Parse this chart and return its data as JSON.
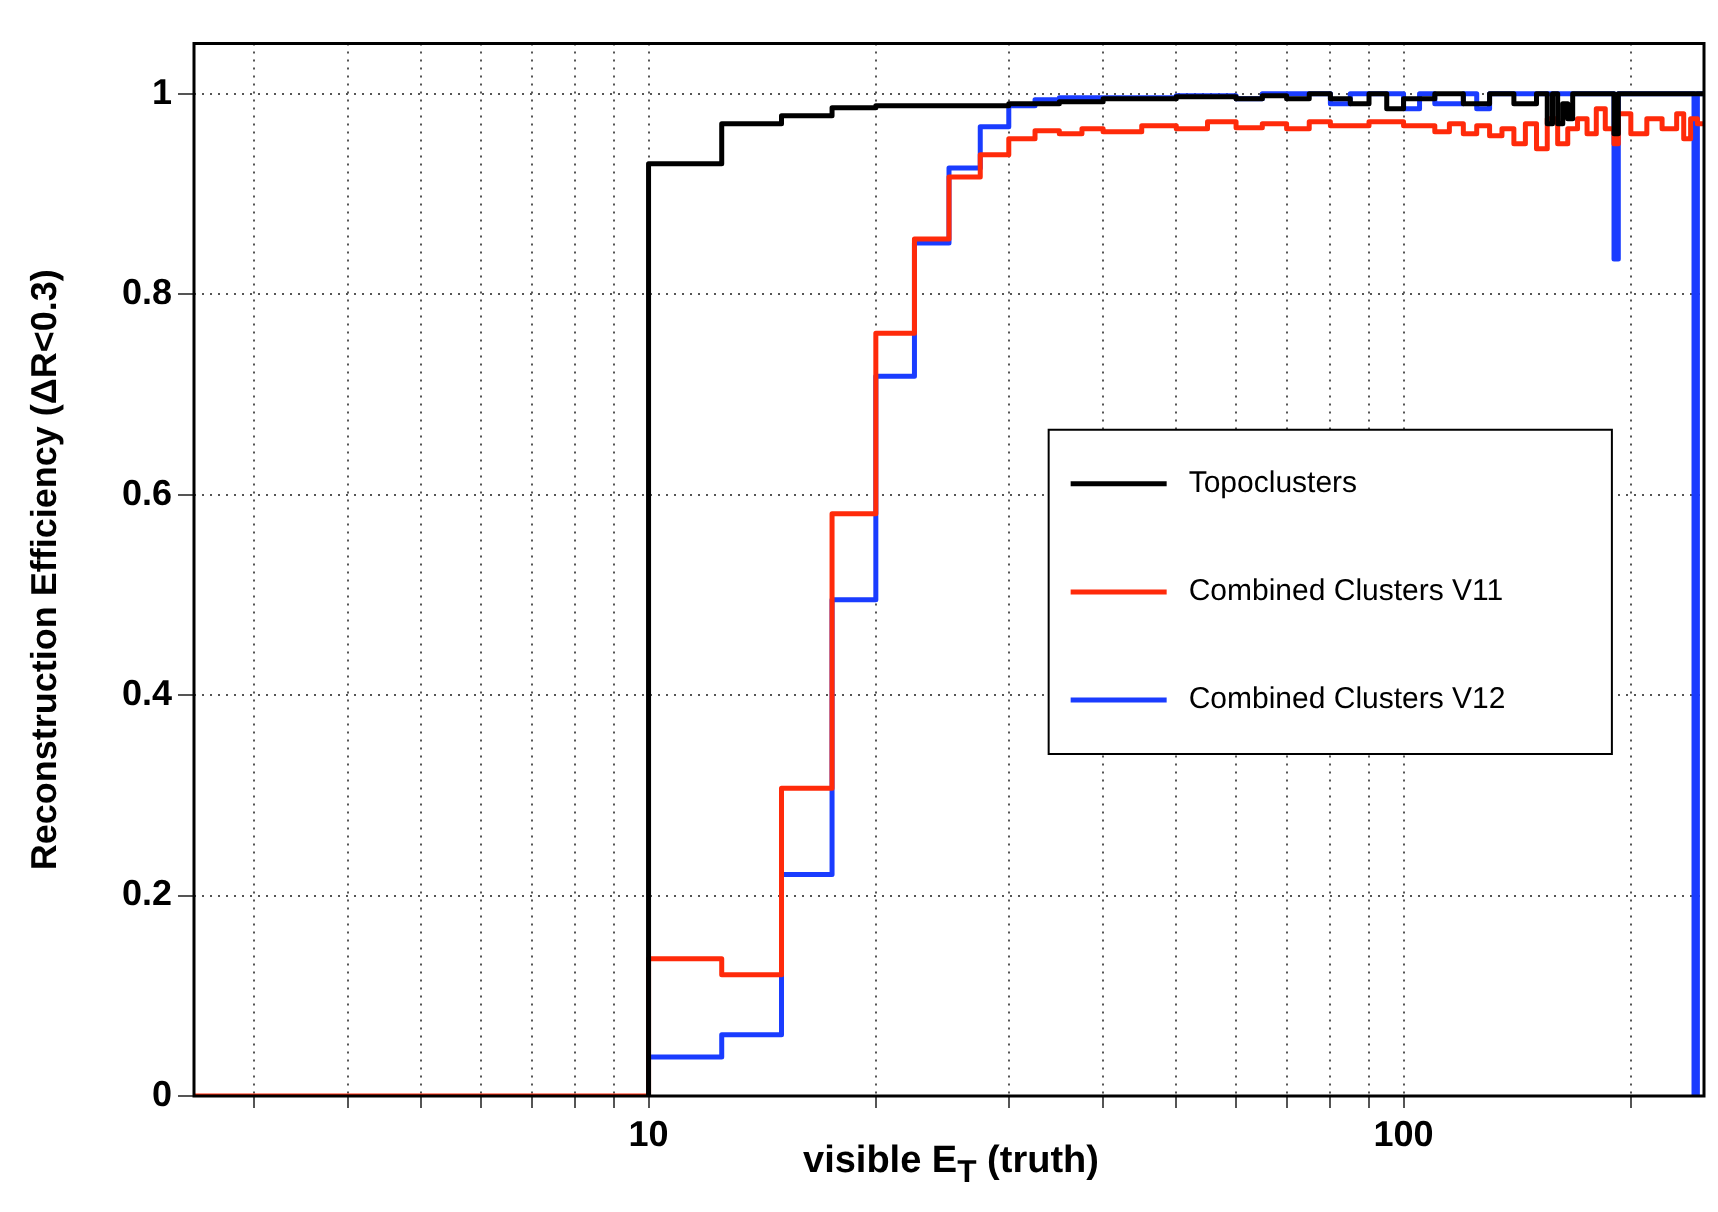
{
  "chart_data": {
    "type": "step",
    "xlabel": "visible E$_{T}$ (truth)",
    "ylabel": "Reconstruction Efficiency (ΔR<0.3)",
    "log": "x",
    "xlim": [
      2.5,
      250
    ],
    "xticks": [
      {
        "value": 3,
        "label": null
      },
      {
        "value": 4,
        "label": null
      },
      {
        "value": 5,
        "label": null
      },
      {
        "value": 6,
        "label": null
      },
      {
        "value": 7,
        "label": null
      },
      {
        "value": 8,
        "label": null
      },
      {
        "value": 9,
        "label": null
      },
      10,
      {
        "value": 20,
        "label": null
      },
      {
        "value": 30,
        "label": null
      },
      {
        "value": 40,
        "label": null
      },
      {
        "value": 50,
        "label": null
      },
      {
        "value": 60,
        "label": null
      },
      {
        "value": 70,
        "label": null
      },
      {
        "value": 80,
        "label": null
      },
      {
        "value": 90,
        "label": null
      },
      100,
      {
        "value": 200,
        "label": null
      }
    ],
    "ylim": [
      0,
      1.05
    ],
    "yticks": [
      0,
      0.2,
      0.4,
      0.6,
      0.8,
      1
    ],
    "grid": true,
    "legend": "right",
    "marker": "none",
    "line_style": "solid",
    "series": [
      {
        "name": "Topoclusters",
        "color": "#000000",
        "x": [
          10,
          10,
          12.5,
          15,
          17.5,
          20,
          30,
          35,
          40,
          50,
          60,
          65,
          70,
          75,
          80,
          85,
          90,
          95,
          100,
          110,
          120,
          130,
          140,
          150,
          155,
          157.5,
          160,
          162.5,
          165,
          167.5,
          190,
          192.5,
          250
        ],
        "values": [
          0,
          0.93,
          0.97,
          0.978,
          0.986,
          0.988,
          0.99,
          0.992,
          0.995,
          0.997,
          0.995,
          0.998,
          0.995,
          1,
          0.995,
          0.99,
          1,
          0.985,
          0.995,
          1,
          0.99,
          1,
          0.99,
          1,
          0.97,
          1,
          0.97,
          0.99,
          0.975,
          1,
          0.96,
          1,
          1
        ]
      },
      {
        "name": "Combined Clusters V11",
        "color": "#ff2a0a",
        "x": [
          2.5,
          10,
          12.5,
          15,
          17.5,
          20,
          22.5,
          25,
          27.5,
          30,
          32.5,
          35,
          37.5,
          40,
          45,
          50,
          55,
          60,
          65,
          70,
          75,
          80,
          90,
          100,
          110,
          115,
          120,
          125,
          130,
          135,
          140,
          145,
          150,
          155,
          160,
          165,
          170,
          175,
          180,
          185,
          190,
          192.5,
          200,
          210,
          220,
          230,
          235,
          240,
          245,
          250
        ],
        "values": [
          0,
          0.137,
          0.121,
          0.307,
          0.581,
          0.761,
          0.855,
          0.917,
          0.939,
          0.955,
          0.963,
          0.96,
          0.965,
          0.962,
          0.968,
          0.965,
          0.972,
          0.966,
          0.97,
          0.965,
          0.972,
          0.968,
          0.972,
          0.968,
          0.962,
          0.97,
          0.96,
          0.968,
          0.958,
          0.965,
          0.95,
          0.97,
          0.945,
          0.975,
          0.95,
          0.965,
          0.975,
          0.96,
          0.985,
          0.965,
          0.95,
          0.98,
          0.96,
          0.975,
          0.965,
          0.98,
          0.955,
          0.975,
          0.97,
          0.97
        ]
      },
      {
        "name": "Combined Clusters V12",
        "color": "#1a3cff",
        "x": [
          10,
          12.5,
          15,
          17.5,
          20,
          22.5,
          25,
          27.5,
          30,
          32.5,
          35,
          50,
          60,
          65,
          80,
          85,
          100,
          105,
          110,
          120,
          125,
          130,
          190,
          192.5,
          242.5,
          245,
          250
        ],
        "values": [
          0.039,
          0.061,
          0.221,
          0.495,
          0.718,
          0.851,
          0.926,
          0.967,
          0.988,
          0.994,
          0.996,
          0.998,
          0.995,
          1,
          0.99,
          1,
          0.985,
          1,
          0.99,
          1,
          0.985,
          1,
          0.835,
          1,
          0,
          1,
          1
        ]
      }
    ]
  }
}
